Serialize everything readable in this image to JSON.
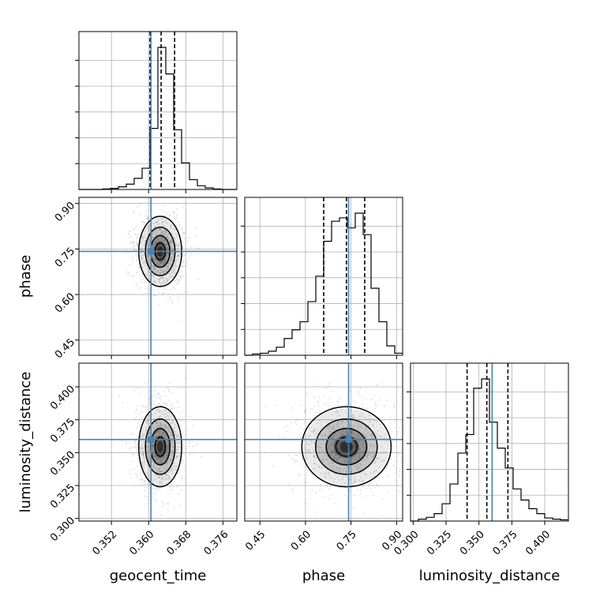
{
  "chart_data": {
    "type": "corner",
    "colors": {
      "truth": "#4682b4",
      "hist": "#000000",
      "grid": "#b0b0b0",
      "scatter": "#999999"
    },
    "grid": true,
    "parameters": [
      {
        "name": "geocent_time",
        "label": "geocent_time",
        "range": [
          0.345,
          0.379
        ],
        "ticks": [
          0.352,
          0.36,
          0.368,
          0.376
        ],
        "tick_labels": [
          "0.352",
          "0.360",
          "0.368",
          "0.376"
        ],
        "truth": 0.3605,
        "quantiles": [
          0.3603,
          0.3627,
          0.3656
        ]
      },
      {
        "name": "phase",
        "label": "phase",
        "range": [
          0.4,
          0.92
        ],
        "ticks": [
          0.45,
          0.6,
          0.75,
          0.9
        ],
        "tick_labels": [
          "0.45",
          "0.60",
          "0.75",
          "0.90"
        ],
        "truth": 0.742,
        "quantiles": [
          0.66,
          0.735,
          0.795
        ]
      },
      {
        "name": "luminosity_distance",
        "label": "luminosity_distance",
        "range": [
          0.298,
          0.418
        ],
        "ticks": [
          0.3,
          0.325,
          0.35,
          0.375,
          0.4
        ],
        "tick_labels": [
          "0.300",
          "0.325",
          "0.350",
          "0.375",
          "0.400"
        ],
        "truth": 0.36,
        "quantiles": [
          0.341,
          0.356,
          0.372
        ]
      }
    ],
    "histograms": [
      {
        "parameter": "geocent_time",
        "bin_edges": [
          0.345,
          0.3467,
          0.3484,
          0.3501,
          0.3518,
          0.3535,
          0.3552,
          0.3569,
          0.3586,
          0.3603,
          0.362,
          0.3637,
          0.3654,
          0.3671,
          0.3688,
          0.3705,
          0.3722,
          0.3739,
          0.3756,
          0.3773,
          0.379
        ],
        "counts": [
          0,
          0,
          0,
          2,
          4,
          10,
          20,
          42,
          80,
          230,
          535,
          435,
          225,
          100,
          37,
          14,
          6,
          2,
          0,
          0
        ]
      },
      {
        "parameter": "phase",
        "bin_edges": [
          0.4,
          0.426,
          0.452,
          0.478,
          0.504,
          0.53,
          0.556,
          0.582,
          0.608,
          0.634,
          0.66,
          0.686,
          0.712,
          0.738,
          0.764,
          0.79,
          0.816,
          0.842,
          0.868,
          0.894,
          0.92
        ],
        "counts": [
          0,
          2,
          3,
          6,
          12,
          25,
          38,
          50,
          80,
          118,
          170,
          200,
          205,
          190,
          212,
          180,
          100,
          50,
          14,
          3
        ]
      },
      {
        "parameter": "luminosity_distance",
        "bin_edges": [
          0.298,
          0.304,
          0.31,
          0.316,
          0.322,
          0.328,
          0.334,
          0.34,
          0.346,
          0.352,
          0.358,
          0.364,
          0.37,
          0.376,
          0.382,
          0.388,
          0.394,
          0.4,
          0.406,
          0.412,
          0.418
        ],
        "counts": [
          0,
          3,
          6,
          12,
          28,
          60,
          110,
          140,
          215,
          230,
          160,
          118,
          86,
          52,
          34,
          20,
          12,
          5,
          3,
          2
        ]
      }
    ],
    "joint": [
      {
        "x": "geocent_time",
        "y": "phase",
        "center": [
          0.3625,
          0.742
        ],
        "spread": [
          0.0022,
          0.055
        ]
      },
      {
        "x": "geocent_time",
        "y": "luminosity_distance",
        "center": [
          0.3625,
          0.3545
        ],
        "spread": [
          0.0022,
          0.0145
        ]
      },
      {
        "x": "phase",
        "y": "luminosity_distance",
        "center": [
          0.735,
          0.3545
        ],
        "spread": [
          0.07,
          0.0145
        ]
      }
    ]
  }
}
